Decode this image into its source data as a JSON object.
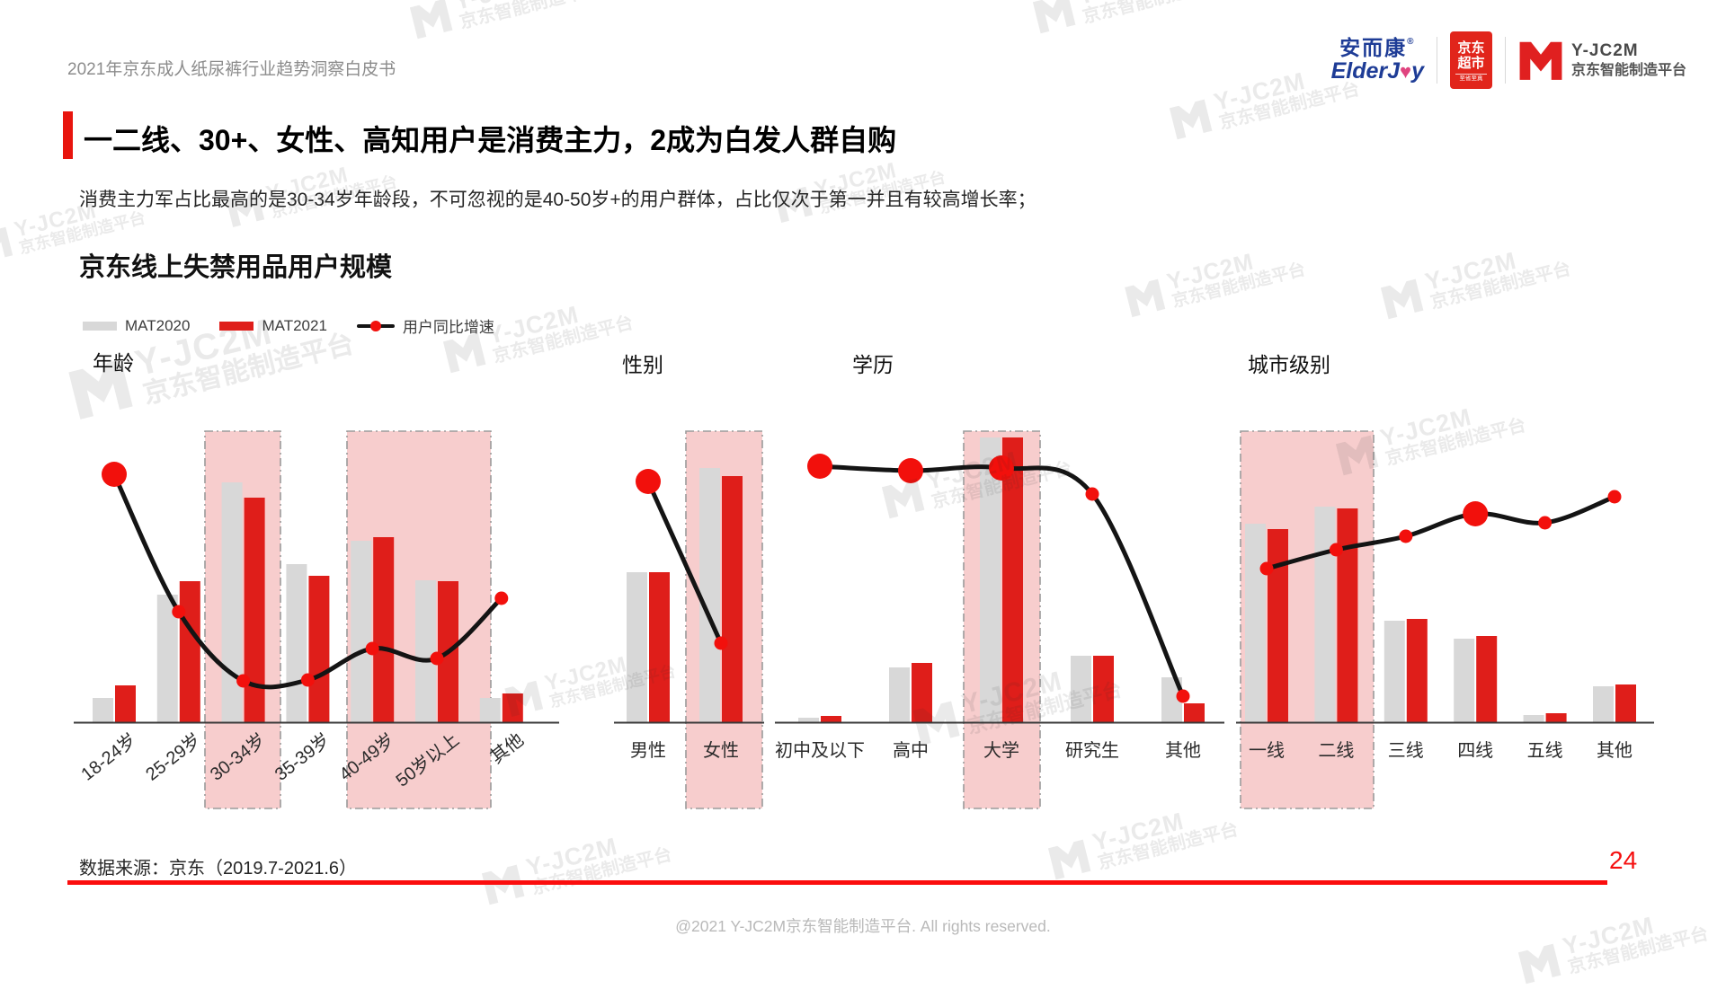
{
  "header": {
    "doc_title": "2021年京东成人纸尿裤行业趋势洞察白皮书"
  },
  "logos": {
    "elderjoy": {
      "cn": "安而康",
      "reg": "®",
      "en_pre": "ElderJ",
      "en_post": "y"
    },
    "jd_market": {
      "line1": "京东",
      "line2": "超市",
      "tagline": "至省至真"
    },
    "yjc2m": {
      "name": "Y-JC2M",
      "subtitle": "京东智能制造平台"
    }
  },
  "title": {
    "text": "一二线、30+、女性、高知用户是消费主力，2成为白发人群自购"
  },
  "subtitle": {
    "text": "消费主力军占比最高的是30-34岁年龄段，不可忽视的是40-50岁+的用户群体，占比仅次于第一并且有较高增长率；"
  },
  "section": {
    "chart_block_title": "京东线上失禁用品用户规模"
  },
  "legend": [
    {
      "label": "MAT2020",
      "type": "bar",
      "color": "#d8d8d8"
    },
    {
      "label": "MAT2021",
      "type": "bar",
      "color": "#df1e1a"
    },
    {
      "label": "用户同比增速",
      "type": "line",
      "color": "#141414"
    }
  ],
  "chart_data": [
    {
      "type": "bar",
      "title": "年龄",
      "categories": [
        "18-24岁",
        "25-29岁",
        "30-34岁",
        "35-39岁",
        "40-49岁",
        "50岁以上",
        "其他"
      ],
      "series": [
        {
          "name": "MAT2020",
          "values": [
            27,
            142,
            267,
            176,
            202,
            158,
            27
          ]
        },
        {
          "name": "MAT2021",
          "values": [
            41,
            157,
            250,
            163,
            206,
            157,
            32
          ]
        }
      ],
      "line": {
        "name": "用户同比增速",
        "values": [
          276,
          123,
          46,
          47,
          82,
          71,
          138
        ],
        "emphasis": [
          0
        ]
      },
      "highlighted_categories": [
        [
          "30-34岁"
        ],
        [
          "40-49岁",
          "50岁以上"
        ]
      ],
      "value_axis": "hidden (relative height units, no numeric scale shown)",
      "grid": false
    },
    {
      "type": "bar",
      "title": "性别",
      "categories": [
        "男性",
        "女性"
      ],
      "series": [
        {
          "name": "MAT2020",
          "values": [
            167,
            283
          ]
        },
        {
          "name": "MAT2021",
          "values": [
            167,
            274
          ]
        }
      ],
      "line": {
        "name": "用户同比增速",
        "values": [
          268,
          88
        ],
        "emphasis": [
          0
        ]
      },
      "highlighted_categories": [
        [
          "女性"
        ]
      ],
      "value_axis": "hidden (relative height units, no numeric scale shown)",
      "grid": false
    },
    {
      "type": "bar",
      "title": "学历",
      "categories": [
        "初中及以下",
        "高中",
        "大学",
        "研究生",
        "其他"
      ],
      "series": [
        {
          "name": "MAT2020",
          "values": [
            5,
            61,
            317,
            74,
            50
          ]
        },
        {
          "name": "MAT2021",
          "values": [
            7,
            66,
            317,
            74,
            21
          ]
        }
      ],
      "line": {
        "name": "用户同比增速",
        "values": [
          285,
          280,
          283,
          254,
          29
        ],
        "emphasis": [
          0,
          1,
          2
        ]
      },
      "highlighted_categories": [
        [
          "大学"
        ]
      ],
      "value_axis": "hidden (relative height units, no numeric scale shown)",
      "grid": false
    },
    {
      "type": "bar",
      "title": "城市级别",
      "categories": [
        "一线",
        "二线",
        "三线",
        "四线",
        "五线",
        "其他"
      ],
      "series": [
        {
          "name": "MAT2020",
          "values": [
            221,
            240,
            113,
            93,
            8,
            40
          ]
        },
        {
          "name": "MAT2021",
          "values": [
            215,
            238,
            115,
            96,
            10,
            42
          ]
        }
      ],
      "line": {
        "name": "用户同比增速",
        "values": [
          171,
          192,
          207,
          232,
          222,
          251
        ],
        "emphasis": [
          3
        ]
      },
      "highlighted_categories": [
        [
          "一线",
          "二线"
        ]
      ],
      "value_axis": "hidden (relative height units, no numeric scale shown)",
      "grid": false
    }
  ],
  "footer": {
    "source": "数据来源：京东（2019.7-2021.6）",
    "page": "24",
    "copyright": "@2021 Y-JC2M京东智能制造平台. All rights reserved."
  },
  "watermark": {
    "line1": "Y-JC2M",
    "line2": "京东智能制造平台"
  },
  "colors": {
    "bar_2020": "#d8d8d8",
    "bar_2021": "#df1e1a",
    "growth_line": "#141414",
    "dot": "#f2100c",
    "highlight_fill": "#f7cdcd",
    "highlight_border": "#9b9b9b",
    "axis": "#3a3a3a",
    "accent_red": "#e8150e",
    "footer_line_red": "#fb0d0d"
  }
}
